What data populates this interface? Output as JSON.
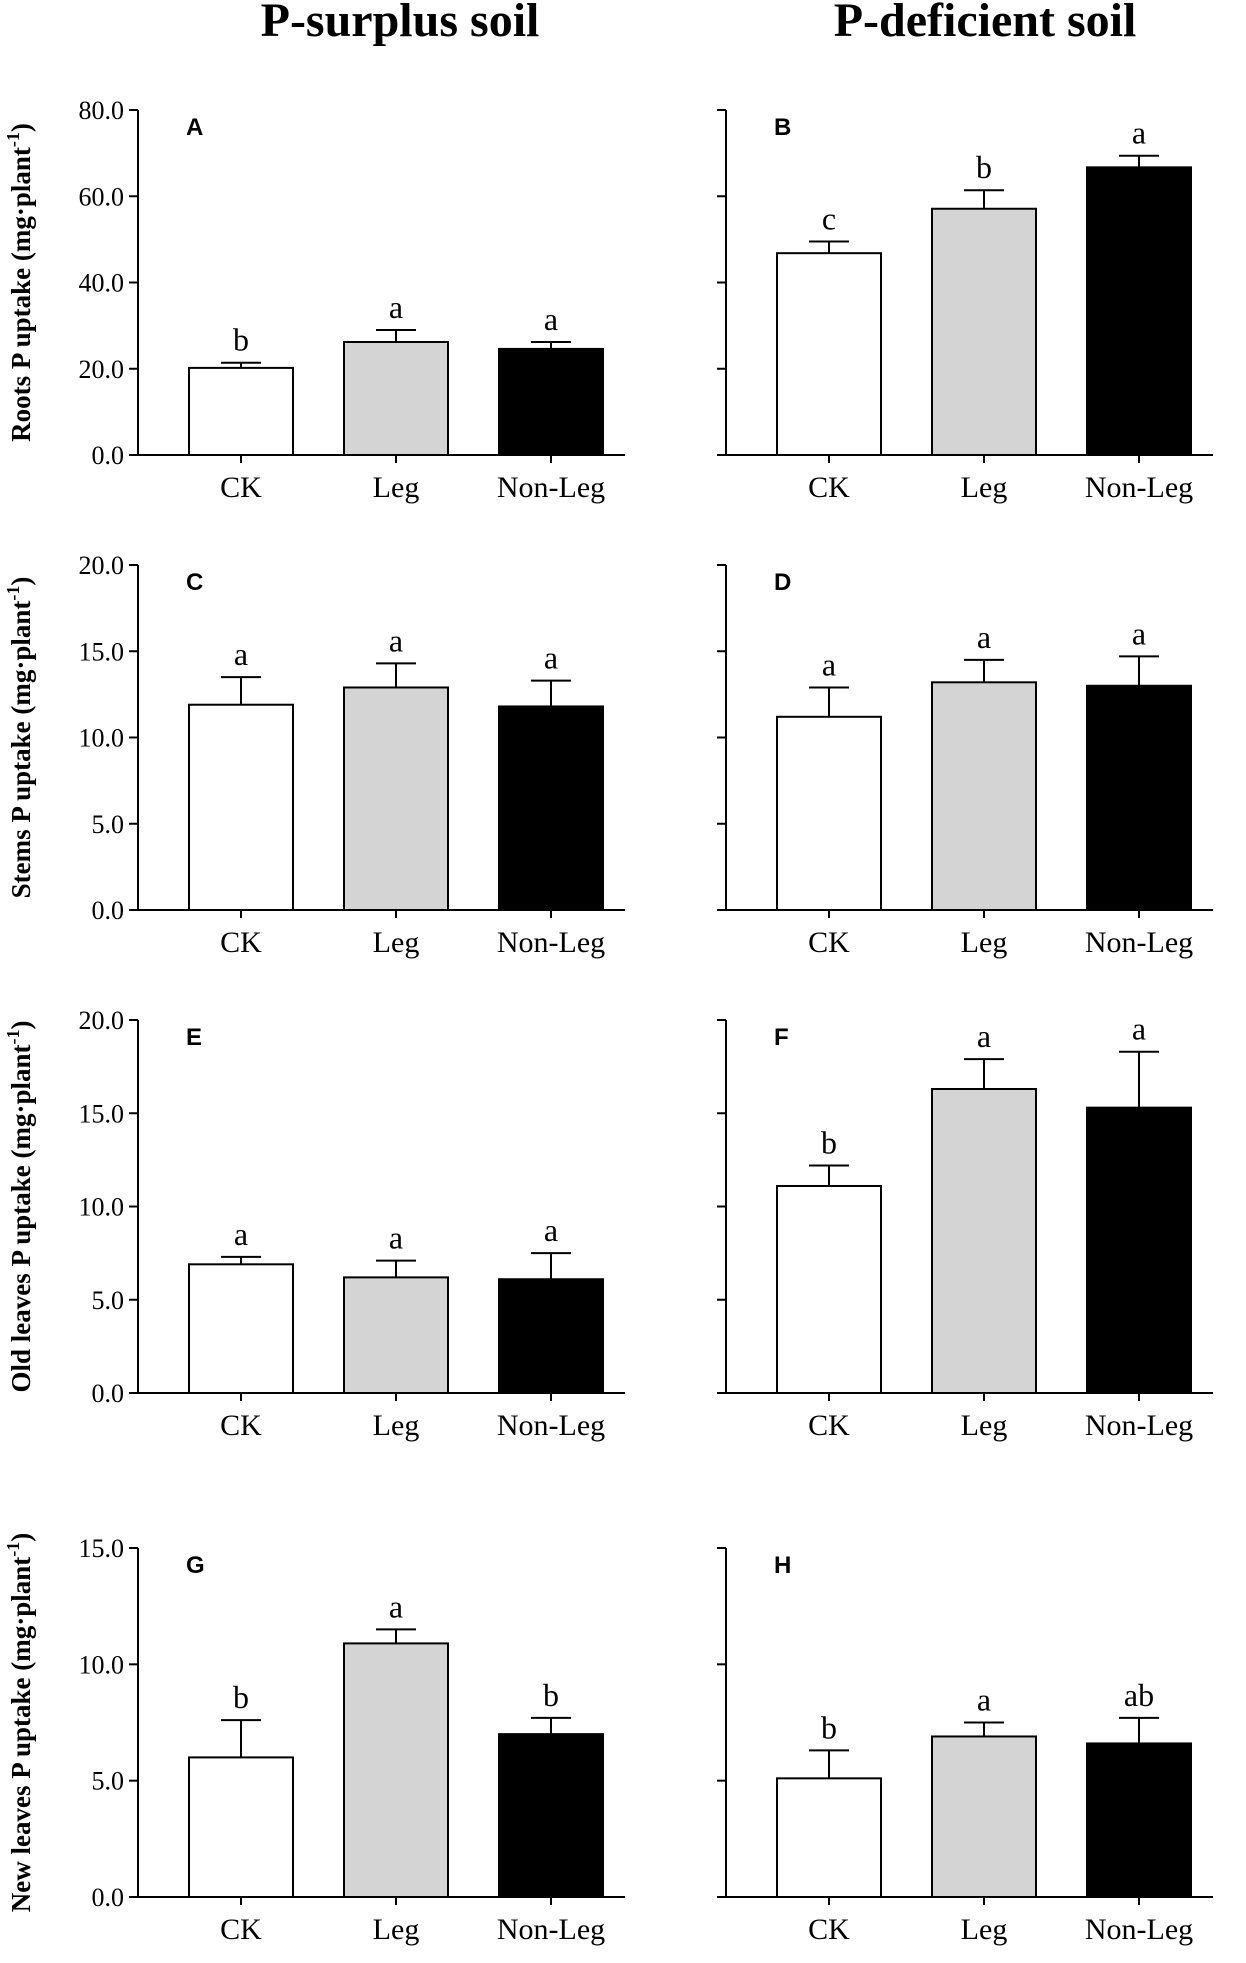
{
  "figure": {
    "columns": [
      "P-surplus soil",
      "P-deficient soil"
    ],
    "ylabel_unit_base": "mg·plant",
    "ylabel_unit_sup": "-1"
  },
  "chart_data": [
    {
      "type": "bar",
      "panel": "A",
      "title": "",
      "row": 0,
      "col": 0,
      "ylabel_main": "Roots P uptake",
      "categories": [
        "CK",
        "Leg",
        "Non-Leg"
      ],
      "values": [
        20.2,
        26.2,
        24.6
      ],
      "errors": [
        1.2,
        2.8,
        1.6
      ],
      "significance": [
        "b",
        "a",
        "a"
      ],
      "ylim": [
        0,
        80
      ],
      "yticks": [
        0,
        20,
        40,
        60,
        80
      ],
      "ytick_labels": [
        "0.0",
        "20.0",
        "40.0",
        "60.0",
        "80.0"
      ],
      "colors": [
        "#ffffff",
        "#d4d4d4",
        "#000000"
      ]
    },
    {
      "type": "bar",
      "panel": "B",
      "title": "",
      "row": 0,
      "col": 1,
      "ylabel_main": "",
      "categories": [
        "CK",
        "Leg",
        "Non-Leg"
      ],
      "values": [
        46.8,
        57.1,
        66.7
      ],
      "errors": [
        2.7,
        4.3,
        2.7
      ],
      "significance": [
        "c",
        "b",
        "a"
      ],
      "ylim": [
        0,
        80
      ],
      "yticks": [
        0,
        20,
        40,
        60,
        80
      ],
      "ytick_labels": [],
      "colors": [
        "#ffffff",
        "#d4d4d4",
        "#000000"
      ]
    },
    {
      "type": "bar",
      "panel": "C",
      "title": "",
      "row": 1,
      "col": 0,
      "ylabel_main": "Stems P uptake",
      "categories": [
        "CK",
        "Leg",
        "Non-Leg"
      ],
      "values": [
        11.9,
        12.9,
        11.8
      ],
      "errors": [
        1.6,
        1.4,
        1.5
      ],
      "significance": [
        "a",
        "a",
        "a"
      ],
      "ylim": [
        0,
        20
      ],
      "yticks": [
        0,
        5,
        10,
        15,
        20
      ],
      "ytick_labels": [
        "0.0",
        "5.0",
        "10.0",
        "15.0",
        "20.0"
      ],
      "colors": [
        "#ffffff",
        "#d4d4d4",
        "#000000"
      ]
    },
    {
      "type": "bar",
      "panel": "D",
      "title": "",
      "row": 1,
      "col": 1,
      "ylabel_main": "",
      "categories": [
        "CK",
        "Leg",
        "Non-Leg"
      ],
      "values": [
        11.2,
        13.2,
        13.0
      ],
      "errors": [
        1.7,
        1.3,
        1.7
      ],
      "significance": [
        "a",
        "a",
        "a"
      ],
      "ylim": [
        0,
        20
      ],
      "yticks": [
        0,
        5,
        10,
        15,
        20
      ],
      "ytick_labels": [],
      "colors": [
        "#ffffff",
        "#d4d4d4",
        "#000000"
      ]
    },
    {
      "type": "bar",
      "panel": "E",
      "title": "",
      "row": 2,
      "col": 0,
      "ylabel_main": "Old leaves P uptake",
      "categories": [
        "CK",
        "Leg",
        "Non-Leg"
      ],
      "values": [
        6.9,
        6.2,
        6.1
      ],
      "errors": [
        0.4,
        0.9,
        1.4
      ],
      "significance": [
        "a",
        "a",
        "a"
      ],
      "ylim": [
        0,
        20
      ],
      "yticks": [
        0,
        5,
        10,
        15,
        20
      ],
      "ytick_labels": [
        "0.0",
        "5.0",
        "10.0",
        "15.0",
        "20.0"
      ],
      "colors": [
        "#ffffff",
        "#d4d4d4",
        "#000000"
      ]
    },
    {
      "type": "bar",
      "panel": "F",
      "title": "",
      "row": 2,
      "col": 1,
      "ylabel_main": "",
      "categories": [
        "CK",
        "Leg",
        "Non-Leg"
      ],
      "values": [
        11.1,
        16.3,
        15.3
      ],
      "errors": [
        1.1,
        1.6,
        3.0
      ],
      "significance": [
        "b",
        "a",
        "a"
      ],
      "ylim": [
        0,
        20
      ],
      "yticks": [
        0,
        5,
        10,
        15,
        20
      ],
      "ytick_labels": [],
      "colors": [
        "#ffffff",
        "#d4d4d4",
        "#000000"
      ]
    },
    {
      "type": "bar",
      "panel": "G",
      "title": "",
      "row": 3,
      "col": 0,
      "ylabel_main": "New leaves P uptake",
      "categories": [
        "CK",
        "Leg",
        "Non-Leg"
      ],
      "values": [
        6.0,
        10.9,
        7.0
      ],
      "errors": [
        1.6,
        0.6,
        0.7
      ],
      "significance": [
        "b",
        "a",
        "b"
      ],
      "ylim": [
        0,
        15
      ],
      "yticks": [
        0,
        5,
        10,
        15
      ],
      "ytick_labels": [
        "0.0",
        "5.0",
        "10.0",
        "15.0"
      ],
      "colors": [
        "#ffffff",
        "#d4d4d4",
        "#000000"
      ]
    },
    {
      "type": "bar",
      "panel": "H",
      "title": "",
      "row": 3,
      "col": 1,
      "ylabel_main": "",
      "categories": [
        "CK",
        "Leg",
        "Non-Leg"
      ],
      "values": [
        5.1,
        6.9,
        6.6
      ],
      "errors": [
        1.2,
        0.6,
        1.1
      ],
      "significance": [
        "b",
        "a",
        "ab"
      ],
      "ylim": [
        0,
        15
      ],
      "yticks": [
        0,
        5,
        10,
        15
      ],
      "ytick_labels": [],
      "colors": [
        "#ffffff",
        "#d4d4d4",
        "#000000"
      ]
    }
  ]
}
